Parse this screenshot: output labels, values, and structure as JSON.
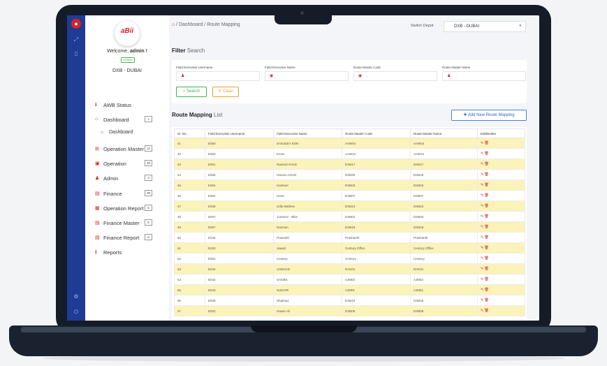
{
  "app": {
    "welcome_prefix": "Welcome,",
    "user": "admin !",
    "role": "ADMIN",
    "depot": "DXB - DUBAI",
    "logo_text": "aBii",
    "accent": "#d8232a",
    "rail_color": "#1f3b94"
  },
  "nav": [
    {
      "icon": "info-icon",
      "glyph": "ℹ",
      "label": "AWB Status",
      "count": ""
    },
    {
      "icon": "home-icon",
      "glyph": "⌂",
      "label": "Dashboard",
      "count": "1"
    },
    {
      "icon": "home-icon",
      "glyph": "⌂",
      "label": "Dashboard",
      "count": "",
      "sub": true
    },
    {
      "icon": "grid-icon",
      "glyph": "⊞",
      "label": "Operation Master",
      "count": "12"
    },
    {
      "icon": "box-icon",
      "glyph": "▣",
      "label": "Operation",
      "count": "36"
    },
    {
      "icon": "user-icon",
      "glyph": "♟",
      "label": "Admin",
      "count": "3"
    },
    {
      "icon": "money-icon",
      "glyph": "▤",
      "label": "Finance",
      "count": "39"
    },
    {
      "icon": "report-icon",
      "glyph": "▦",
      "label": "Operation Report",
      "count": "6"
    },
    {
      "icon": "money-icon",
      "glyph": "▤",
      "label": "Finance Master",
      "count": "8"
    },
    {
      "icon": "money-icon",
      "glyph": "▤",
      "label": "Finance Report",
      "count": "6"
    },
    {
      "icon": "info-icon",
      "glyph": "ℹ",
      "label": "Reports",
      "count": ""
    }
  ],
  "breadcrumb": {
    "sep": "/",
    "dashboard": "Dashboard",
    "current": "Route Mapping"
  },
  "switch_depot": {
    "label": "Switch Depot",
    "value": "DXB - DUBAI"
  },
  "filter": {
    "title": "Filter",
    "title_suffix": "Search",
    "fields": [
      {
        "label": "Field Executive Username"
      },
      {
        "label": "Field Executive Name"
      },
      {
        "label": "Route Master Code"
      },
      {
        "label": "Route Master Name"
      }
    ],
    "search_label": "Search",
    "clear_label": "Clear"
  },
  "list": {
    "title": "Route Mapping",
    "title_suffix": "List",
    "add_label": "Add New Route Mapping",
    "columns": [
      "Sr. No.",
      "Field Executive Username",
      "Field Executive Name",
      "Route Master Code",
      "Route Master Name",
      "Edit/Delete"
    ],
    "rows": [
      [
        "41",
        "E050",
        "SANJEEV EDN",
        "AAW04",
        "AAW04"
      ],
      [
        "42",
        "E053",
        "Imran",
        "AAW12",
        "AAW12"
      ],
      [
        "43",
        "E061",
        "Naveed AHAD",
        "DXB17",
        "DXB17"
      ],
      [
        "44",
        "E066",
        "Haroon AHAD",
        "DXB25",
        "DXB25"
      ],
      [
        "45",
        "E064",
        "Hasheer",
        "DXB03",
        "DXB03"
      ],
      [
        "46",
        "E062",
        "Umer",
        "DXB07",
        "DXB07"
      ],
      [
        "47",
        "E038",
        "Jolly Mathew",
        "DXB23",
        "DXB23"
      ],
      [
        "48",
        "E037",
        "Jomerez - Bike",
        "DXB04",
        "DXB04"
      ],
      [
        "49",
        "E057",
        "Ramzan",
        "DXB18",
        "DXB18"
      ],
      [
        "50",
        "E046",
        "Prasanth",
        "Prashanth",
        "Prashanth"
      ],
      [
        "51",
        "E030",
        "Jawad",
        "Century Office",
        "Century Office"
      ],
      [
        "52",
        "E052",
        "Century",
        "Century",
        "Century"
      ],
      [
        "53",
        "E044",
        "JAWHAD",
        "RAK01",
        "RAK01"
      ],
      [
        "54",
        "E042",
        "SAOBS",
        "AJM02",
        "AJM02"
      ],
      [
        "55",
        "E043",
        "SUDAIR",
        "AJM01",
        "AJM01"
      ],
      [
        "56",
        "E028",
        "Shahnaz",
        "DXB15",
        "DXB15"
      ],
      [
        "57",
        "E022",
        "Hasan Ali",
        "DXB09",
        "DXB09"
      ]
    ]
  }
}
